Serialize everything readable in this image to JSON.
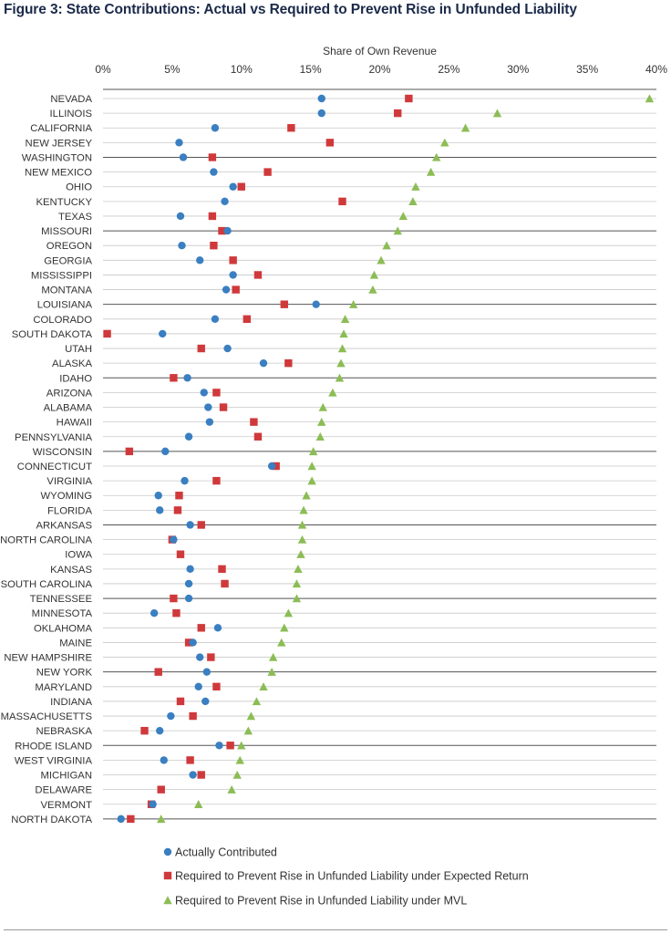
{
  "title": "Figure 3: State Contributions: Actual vs Required to Prevent Rise in Unfunded Liability",
  "chart_data": {
    "type": "scatter",
    "xlabel": "Share of Own Revenue",
    "x_ticks": [
      "0%",
      "5%",
      "10%",
      "15%",
      "20%",
      "25%",
      "30%",
      "35%",
      "40%"
    ],
    "xlim": [
      0,
      40
    ],
    "grid": "horizontal lines every row; darker separators every 5 rows",
    "legend_position": "bottom",
    "categories": [
      "NEVADA",
      "ILLINOIS",
      "CALIFORNIA",
      "NEW JERSEY",
      "WASHINGTON",
      "NEW MEXICO",
      "OHIO",
      "KENTUCKY",
      "TEXAS",
      "MISSOURI",
      "OREGON",
      "GEORGIA",
      "MISSISSIPPI",
      "MONTANA",
      "LOUISIANA",
      "COLORADO",
      "SOUTH DAKOTA",
      "UTAH",
      "ALASKA",
      "IDAHO",
      "ARIZONA",
      "ALABAMA",
      "HAWAII",
      "PENNSYLVANIA",
      "WISCONSIN",
      "CONNECTICUT",
      "VIRGINIA",
      "WYOMING",
      "FLORIDA",
      "ARKANSAS",
      "NORTH CAROLINA",
      "IOWA",
      "KANSAS",
      "SOUTH CAROLINA",
      "TENNESSEE",
      "MINNESOTA",
      "OKLAHOMA",
      "MAINE",
      "NEW HAMPSHIRE",
      "NEW YORK",
      "MARYLAND",
      "INDIANA",
      "MASSACHUSETTS",
      "NEBRASKA",
      "RHODE ISLAND",
      "WEST VIRGINIA",
      "MICHIGAN",
      "DELAWARE",
      "VERMONT",
      "NORTH DAKOTA"
    ],
    "series": [
      {
        "name": "Actually Contributed",
        "color": "#3a7fc1",
        "marker": "circle",
        "values": [
          15.8,
          15.8,
          8.1,
          5.5,
          5.8,
          8.0,
          9.4,
          8.8,
          5.6,
          9.0,
          5.7,
          7.0,
          9.4,
          8.9,
          15.4,
          8.1,
          4.3,
          9.0,
          11.6,
          6.1,
          7.3,
          7.6,
          7.7,
          6.2,
          4.5,
          12.2,
          5.9,
          4.0,
          4.1,
          6.3,
          5.1,
          null,
          6.3,
          6.2,
          6.2,
          3.7,
          8.3,
          6.5,
          7.0,
          7.5,
          6.9,
          7.4,
          4.9,
          4.1,
          8.4,
          4.4,
          6.5,
          null,
          3.6,
          1.3
        ]
      },
      {
        "name": "Required to Prevent Rise in Unfunded Liability under Expected Return",
        "color": "#d0393b",
        "marker": "square",
        "values": [
          22.1,
          21.3,
          13.6,
          16.4,
          7.9,
          11.9,
          10.0,
          17.3,
          7.9,
          8.6,
          8.0,
          9.4,
          11.2,
          9.6,
          13.1,
          10.4,
          0.3,
          7.1,
          13.4,
          5.1,
          8.2,
          8.7,
          10.9,
          11.2,
          1.9,
          12.5,
          8.2,
          5.5,
          5.4,
          7.1,
          5.0,
          5.6,
          8.6,
          8.8,
          5.1,
          5.3,
          7.1,
          6.2,
          7.8,
          4.0,
          8.2,
          5.6,
          6.5,
          3.0,
          9.2,
          6.3,
          7.1,
          4.2,
          3.5,
          2.0
        ]
      },
      {
        "name": "Required to Prevent Rise in Unfunded Liability under MVL",
        "color": "#8cbd55",
        "marker": "triangle",
        "values": [
          39.5,
          28.5,
          26.2,
          24.7,
          24.1,
          23.7,
          22.6,
          22.4,
          21.7,
          21.3,
          20.5,
          20.1,
          19.6,
          19.5,
          18.1,
          17.5,
          17.4,
          17.3,
          17.2,
          17.1,
          16.6,
          15.9,
          15.8,
          15.7,
          15.2,
          15.1,
          15.1,
          14.7,
          14.5,
          14.4,
          14.4,
          14.3,
          14.1,
          14.0,
          14.0,
          13.4,
          13.1,
          12.9,
          12.3,
          12.2,
          11.6,
          11.1,
          10.7,
          10.5,
          10.0,
          9.9,
          9.7,
          9.3,
          6.9,
          4.2
        ]
      }
    ]
  },
  "legend": {
    "items": [
      {
        "label": "Actually Contributed",
        "color": "#3a7fc1",
        "marker": "circle"
      },
      {
        "label": "Required to Prevent Rise in Unfunded Liability under Expected Return",
        "color": "#d0393b",
        "marker": "square"
      },
      {
        "label": "Required to Prevent Rise in Unfunded Liability under MVL",
        "color": "#8cbd55",
        "marker": "triangle"
      }
    ]
  }
}
